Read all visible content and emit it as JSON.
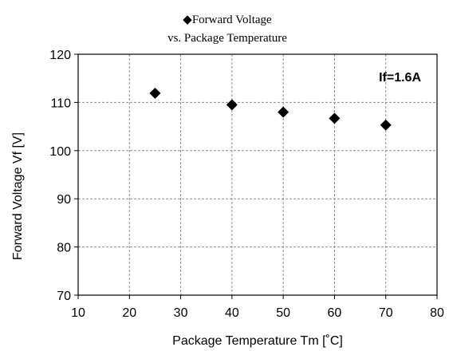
{
  "chart_data": {
    "type": "scatter",
    "title_line1": "Forward Voltage",
    "title_line2": "vs. Package Temperature",
    "legend_marker": "◆",
    "xlabel": "Package Temperature  Tm [˚C]",
    "ylabel": "Forward  Voltage Vf [V]",
    "annotation": "If=1.6A",
    "xlim": [
      10,
      80
    ],
    "ylim": [
      70,
      120
    ],
    "x_ticks": [
      10,
      20,
      30,
      40,
      50,
      60,
      70,
      80
    ],
    "y_ticks": [
      70,
      80,
      90,
      100,
      110,
      120
    ],
    "grid": true,
    "grid_style": "dashed",
    "series": [
      {
        "marker": "diamond",
        "color": "#000000",
        "points": [
          {
            "x": 25,
            "y": 111.9
          },
          {
            "x": 40,
            "y": 109.5
          },
          {
            "x": 50,
            "y": 108.0
          },
          {
            "x": 60,
            "y": 106.7
          },
          {
            "x": 70,
            "y": 105.3
          }
        ]
      }
    ]
  }
}
